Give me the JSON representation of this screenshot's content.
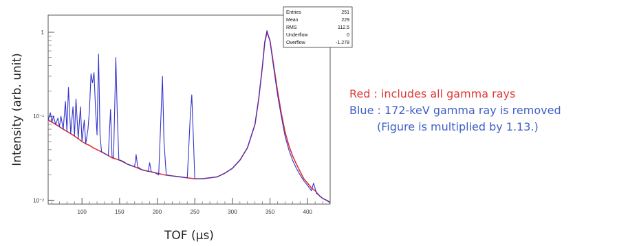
{
  "chart_data": {
    "type": "line",
    "title": "",
    "xlabel": "TOF (μs)",
    "ylabel": "Intensity (arb. unit)",
    "x_scale": "linear",
    "y_scale": "log",
    "xlim": [
      55,
      430
    ],
    "ylim": [
      0.009,
      1.6
    ],
    "xticks": [
      100,
      150,
      200,
      250,
      300,
      350,
      400
    ],
    "yticks": [
      {
        "value": 0.01,
        "label": "10⁻²"
      },
      {
        "value": 0.1,
        "label": "10⁻¹"
      },
      {
        "value": 1,
        "label": "1"
      }
    ],
    "grid": false,
    "series": [
      {
        "color": "#e03030",
        "x": [
          55,
          60,
          65,
          70,
          75,
          80,
          85,
          90,
          95,
          100,
          105,
          110,
          115,
          120,
          125,
          130,
          135,
          140,
          145,
          150,
          160,
          170,
          180,
          190,
          200,
          210,
          220,
          230,
          240,
          250,
          260,
          270,
          280,
          290,
          300,
          310,
          320,
          330,
          335,
          340,
          343,
          346,
          350,
          355,
          360,
          365,
          370,
          375,
          380,
          385,
          390,
          395,
          400,
          405,
          410,
          415,
          420,
          425,
          430
        ],
        "y": [
          0.09,
          0.085,
          0.08,
          0.075,
          0.07,
          0.066,
          0.062,
          0.058,
          0.054,
          0.05,
          0.047,
          0.045,
          0.042,
          0.04,
          0.038,
          0.036,
          0.034,
          0.032,
          0.031,
          0.03,
          0.027,
          0.025,
          0.023,
          0.022,
          0.021,
          0.02,
          0.0195,
          0.019,
          0.0185,
          0.018,
          0.018,
          0.0185,
          0.019,
          0.021,
          0.024,
          0.03,
          0.042,
          0.08,
          0.16,
          0.4,
          0.75,
          1.0,
          0.8,
          0.4,
          0.2,
          0.11,
          0.065,
          0.045,
          0.034,
          0.027,
          0.022,
          0.018,
          0.016,
          0.014,
          0.013,
          0.0115,
          0.0105,
          0.01,
          0.0095
        ]
      },
      {
        "color": "#3333cc",
        "x": [
          55,
          58,
          60,
          62,
          65,
          68,
          70,
          72,
          75,
          78,
          80,
          82,
          85,
          88,
          90,
          92,
          95,
          98,
          100,
          103,
          105,
          108,
          110,
          112,
          114,
          116,
          118,
          120,
          122,
          124,
          126,
          130,
          135,
          138,
          140,
          142,
          145,
          147,
          149,
          151,
          155,
          160,
          165,
          170,
          172,
          174,
          180,
          188,
          190,
          192,
          198,
          202,
          205,
          207,
          209,
          212,
          220,
          230,
          240,
          244,
          246,
          248,
          250,
          260,
          270,
          280,
          290,
          300,
          310,
          320,
          330,
          335,
          340,
          343,
          346,
          350,
          355,
          360,
          365,
          370,
          375,
          380,
          385,
          390,
          395,
          400,
          405,
          408,
          412,
          415,
          420,
          425,
          430
        ],
        "y": [
          0.09,
          0.11,
          0.085,
          0.1,
          0.08,
          0.095,
          0.075,
          0.1,
          0.07,
          0.15,
          0.066,
          0.22,
          0.062,
          0.13,
          0.058,
          0.16,
          0.054,
          0.13,
          0.05,
          0.09,
          0.047,
          0.07,
          0.12,
          0.32,
          0.25,
          0.33,
          0.12,
          0.06,
          0.55,
          0.06,
          0.038,
          0.036,
          0.034,
          0.12,
          0.033,
          0.032,
          0.5,
          0.1,
          0.03,
          0.03,
          0.029,
          0.027,
          0.026,
          0.025,
          0.035,
          0.025,
          0.023,
          0.022,
          0.028,
          0.022,
          0.021,
          0.02,
          0.1,
          0.3,
          0.05,
          0.02,
          0.0195,
          0.019,
          0.0185,
          0.1,
          0.18,
          0.06,
          0.018,
          0.018,
          0.0185,
          0.019,
          0.021,
          0.024,
          0.03,
          0.042,
          0.08,
          0.16,
          0.4,
          0.78,
          1.05,
          0.78,
          0.37,
          0.18,
          0.1,
          0.058,
          0.04,
          0.03,
          0.024,
          0.02,
          0.017,
          0.015,
          0.013,
          0.016,
          0.012,
          0.0115,
          0.0105,
          0.01,
          0.0093
        ]
      }
    ]
  },
  "stats_box": [
    {
      "label": "Entries",
      "value": "251"
    },
    {
      "label": "Mean",
      "value": "229"
    },
    {
      "label": "RMS",
      "value": "112.5"
    },
    {
      "label": "Underflow",
      "value": "0"
    },
    {
      "label": "Overflow",
      "value": "-1.278"
    }
  ],
  "notes": {
    "red_line": "Red : includes all gamma rays",
    "blue_line": "Blue : 172-keV gamma ray is removed",
    "blue_sub": "(Figure is multiplied by 1.13.)",
    "red_color": "#e03a3a",
    "blue_color": "#3f5fc8"
  }
}
